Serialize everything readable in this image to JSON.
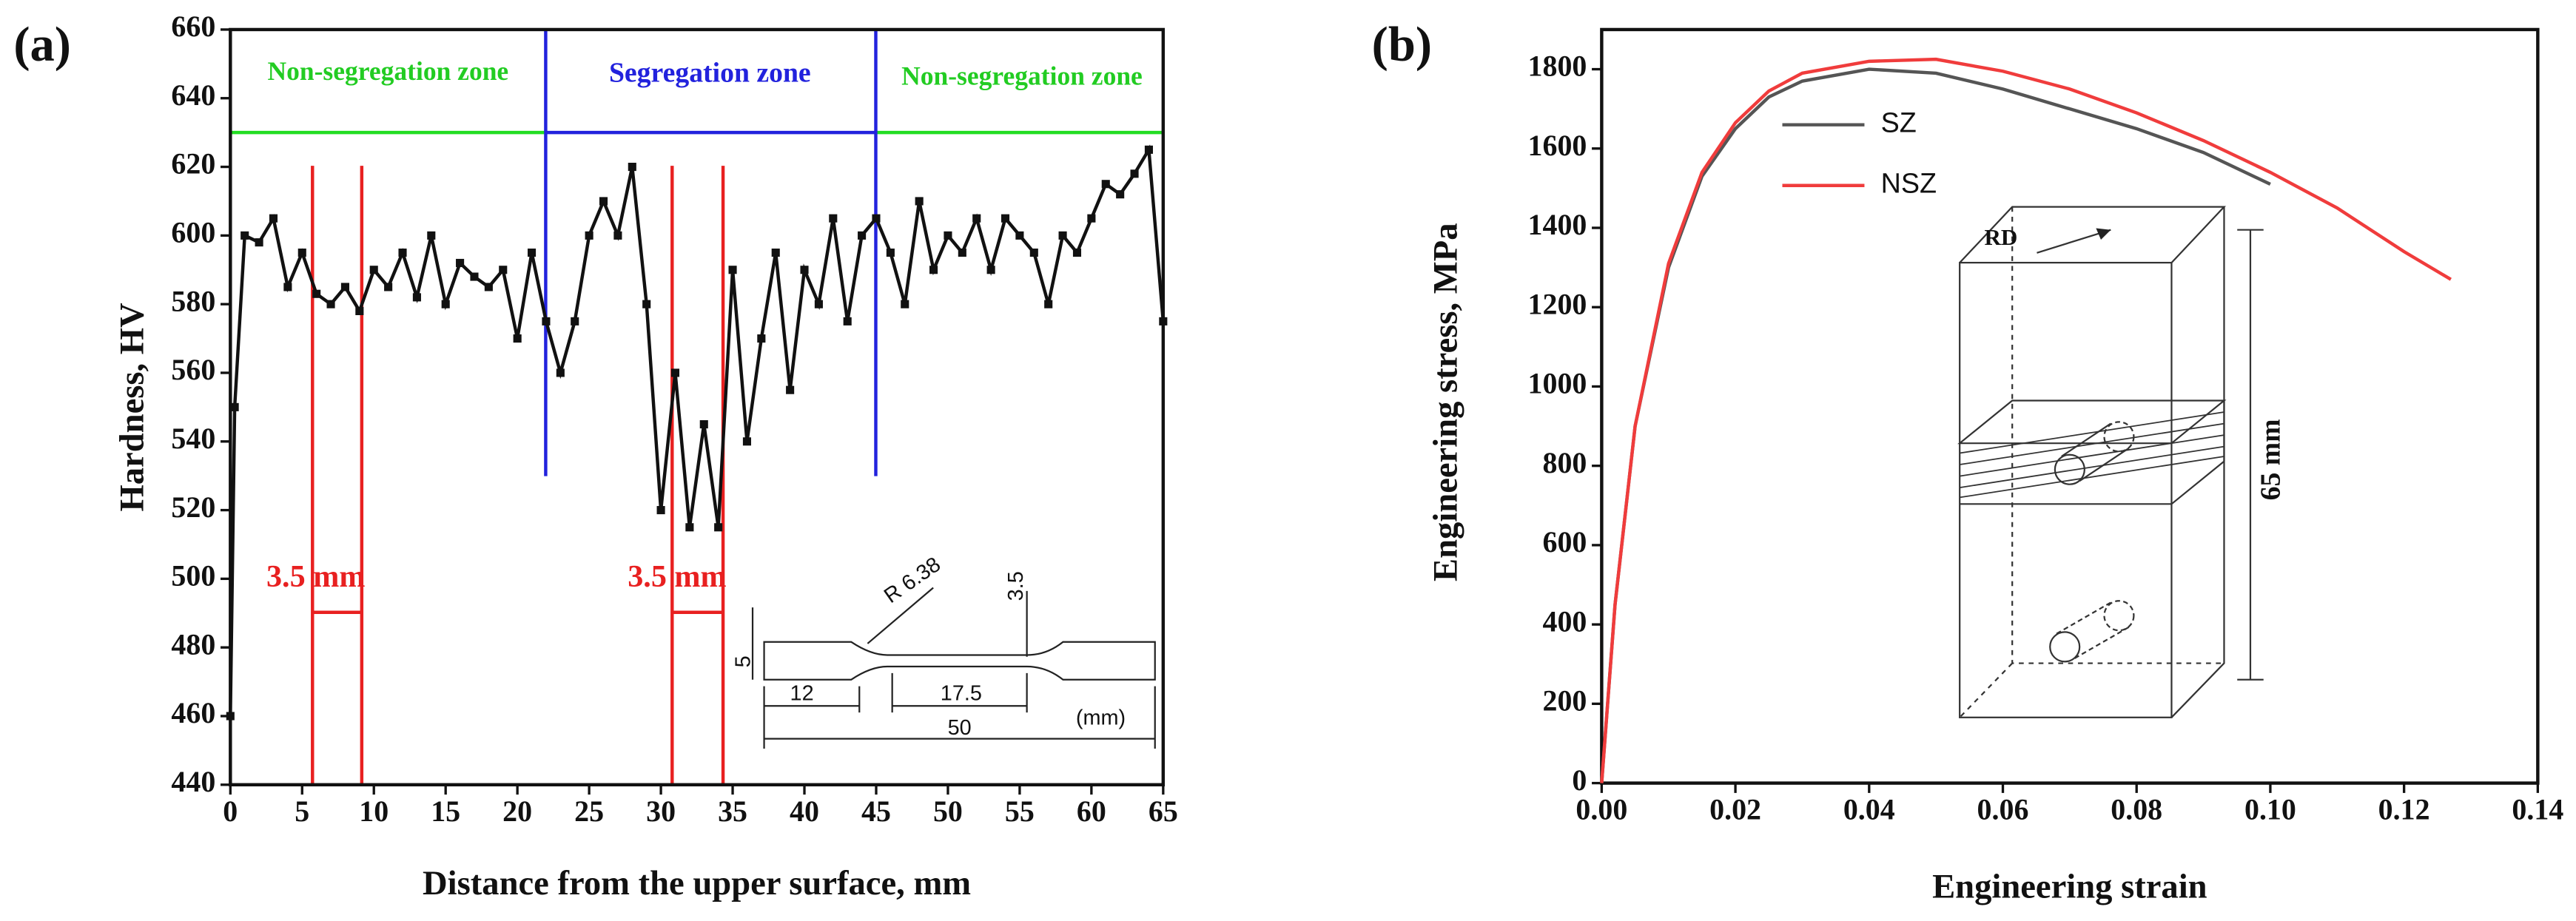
{
  "chart_data": [
    {
      "type": "line",
      "panel": "(a)",
      "xlabel": "Distance from the upper surface, mm",
      "ylabel": "Hardness, HV",
      "x": [
        0,
        0.3,
        1,
        2,
        3,
        4,
        5,
        6,
        7,
        8,
        9,
        10,
        11,
        12,
        13,
        14,
        15,
        16,
        17,
        18,
        19,
        20,
        21,
        22,
        23,
        24,
        25,
        26,
        27,
        28,
        29,
        30,
        31,
        32,
        33,
        34,
        35,
        36,
        37,
        38,
        39,
        40,
        41,
        42,
        43,
        44,
        45,
        46,
        47,
        48,
        49,
        50,
        51,
        52,
        53,
        54,
        55,
        56,
        57,
        58,
        59,
        60,
        61,
        62,
        63,
        64,
        65
      ],
      "series": [
        {
          "color": "#111111",
          "markers": true,
          "values": [
            460,
            550,
            600,
            598,
            605,
            585,
            595,
            583,
            580,
            585,
            578,
            590,
            585,
            595,
            582,
            600,
            580,
            592,
            588,
            585,
            590,
            570,
            595,
            575,
            560,
            575,
            600,
            610,
            600,
            620,
            580,
            520,
            560,
            515,
            545,
            515,
            590,
            540,
            570,
            595,
            555,
            590,
            580,
            605,
            575,
            600,
            605,
            595,
            580,
            610,
            590,
            600,
            595,
            605,
            590,
            605,
            600,
            595,
            580,
            600,
            595,
            605,
            615,
            612,
            618,
            625,
            575
          ]
        }
      ],
      "xlim": [
        0,
        65
      ],
      "xticks": [
        0,
        5,
        10,
        15,
        20,
        25,
        30,
        35,
        40,
        45,
        50,
        55,
        60,
        65
      ],
      "ylim": [
        440,
        660
      ],
      "yticks": [
        440,
        460,
        480,
        500,
        520,
        540,
        560,
        580,
        600,
        620,
        640,
        660
      ],
      "annotations": [
        "Non-segregation zone",
        "Segregation zone",
        "Non-segregation zone",
        "3.5 mm",
        "3.5 mm"
      ],
      "inset_labels": [
        "R 6.38",
        "3.5",
        "5",
        "12",
        "17.5",
        "50",
        "(mm)"
      ]
    },
    {
      "type": "line",
      "panel": "(b)",
      "xlabel": "Engineering strain",
      "ylabel": "Engineering  stress, MPa",
      "x": [
        0,
        0.002,
        0.005,
        0.01,
        0.015,
        0.02,
        0.025,
        0.03,
        0.04,
        0.05,
        0.06,
        0.07,
        0.08,
        0.09,
        0.1,
        0.11,
        0.12,
        0.127
      ],
      "series": [
        {
          "name": "SZ",
          "color": "#555555",
          "values": [
            0,
            450,
            900,
            1300,
            1530,
            1650,
            1730,
            1770,
            1800,
            1790,
            1750,
            1700,
            1650,
            1590,
            1510,
            null,
            null,
            null
          ]
        },
        {
          "name": "NSZ",
          "color": "#f03c3c",
          "values": [
            0,
            450,
            900,
            1310,
            1540,
            1665,
            1745,
            1790,
            1820,
            1825,
            1795,
            1750,
            1690,
            1620,
            1540,
            1450,
            1340,
            1270
          ]
        }
      ],
      "xlim": [
        0,
        0.14
      ],
      "xticks": [
        {
          "value": 0,
          "label": "0.00"
        },
        {
          "value": 0.02,
          "label": "0.02"
        },
        {
          "value": 0.04,
          "label": "0.04"
        },
        {
          "value": 0.06,
          "label": "0.06"
        },
        {
          "value": 0.08,
          "label": "0.08"
        },
        {
          "value": 0.1,
          "label": "0.10"
        },
        {
          "value": 0.12,
          "label": "0.12"
        },
        {
          "value": 0.14,
          "label": "0.14"
        }
      ],
      "ylim": [
        0,
        1900
      ],
      "yticks": [
        0,
        200,
        400,
        600,
        800,
        1000,
        1200,
        1400,
        1600,
        1800
      ],
      "inset_labels": [
        "RD",
        "65 mm"
      ]
    }
  ]
}
